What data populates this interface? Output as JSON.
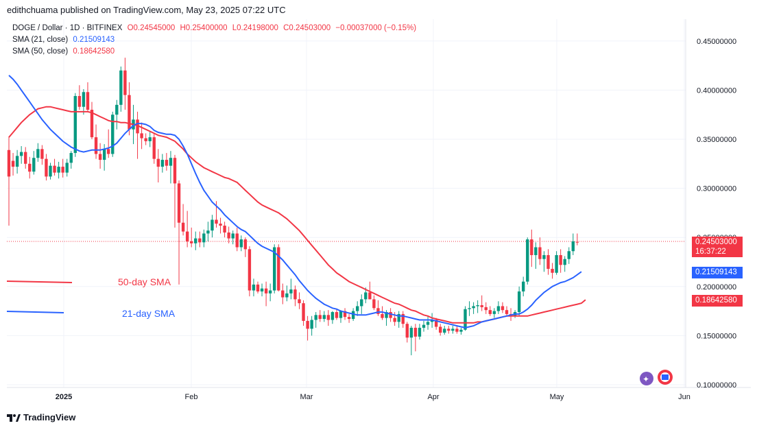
{
  "header": "edithchuama published on TradingView.com, May 23, 2025 07:22 UTC",
  "legend": {
    "symbol": "DOGE / Dollar · 1D · BITFINEX",
    "open": "O0.24545000",
    "high": "H0.25400000",
    "low": "L0.24198000",
    "close": "C0.24503000",
    "change": "−0.00037000 (−0.15%)",
    "sma21_label": "SMA (21, close)",
    "sma21_value": "0.21509143",
    "sma50_label": "SMA (50, close)",
    "sma50_value": "0.18642580"
  },
  "price_tags": {
    "last_price": "0.24503000",
    "countdown": "16:37:22",
    "sma21": "0.21509143",
    "sma50": "0.18642580"
  },
  "annotations": {
    "sma50": "50-day SMA",
    "sma21": "21-day SMA"
  },
  "footer": "TradingView",
  "colors": {
    "up": "#089981",
    "down": "#f23645",
    "sma21": "#2962ff",
    "sma50": "#f23645",
    "grid": "#f0f3fa"
  },
  "chart_data": {
    "type": "candlestick",
    "y_ticks": [
      "0.45000000",
      "0.40000000",
      "0.35000000",
      "0.30000000",
      "0.25000000",
      "0.20000000",
      "0.15000000",
      "0.10000000"
    ],
    "y_tick_values": [
      0.45,
      0.4,
      0.35,
      0.3,
      0.25,
      0.2,
      0.15,
      0.1
    ],
    "x_ticks": [
      "2025",
      "Feb",
      "Mar",
      "Apr",
      "May",
      "Jun"
    ],
    "ylim": [
      0.1,
      0.45
    ],
    "grid": true,
    "candles": [
      {
        "o": 0.339,
        "h": 0.353,
        "l": 0.262,
        "c": 0.312
      },
      {
        "o": 0.328,
        "h": 0.336,
        "l": 0.313,
        "c": 0.322
      },
      {
        "o": 0.322,
        "h": 0.339,
        "l": 0.315,
        "c": 0.333
      },
      {
        "o": 0.333,
        "h": 0.343,
        "l": 0.325,
        "c": 0.337
      },
      {
        "o": 0.337,
        "h": 0.342,
        "l": 0.32,
        "c": 0.325
      },
      {
        "o": 0.325,
        "h": 0.332,
        "l": 0.31,
        "c": 0.317
      },
      {
        "o": 0.317,
        "h": 0.338,
        "l": 0.314,
        "c": 0.331
      },
      {
        "o": 0.331,
        "h": 0.346,
        "l": 0.327,
        "c": 0.34
      },
      {
        "o": 0.34,
        "h": 0.344,
        "l": 0.324,
        "c": 0.33
      },
      {
        "o": 0.33,
        "h": 0.335,
        "l": 0.308,
        "c": 0.312
      },
      {
        "o": 0.312,
        "h": 0.326,
        "l": 0.309,
        "c": 0.323
      },
      {
        "o": 0.323,
        "h": 0.33,
        "l": 0.313,
        "c": 0.316
      },
      {
        "o": 0.316,
        "h": 0.327,
        "l": 0.31,
        "c": 0.322
      },
      {
        "o": 0.322,
        "h": 0.33,
        "l": 0.311,
        "c": 0.316
      },
      {
        "o": 0.316,
        "h": 0.33,
        "l": 0.312,
        "c": 0.326
      },
      {
        "o": 0.326,
        "h": 0.338,
        "l": 0.32,
        "c": 0.336
      },
      {
        "o": 0.336,
        "h": 0.397,
        "l": 0.332,
        "c": 0.394
      },
      {
        "o": 0.394,
        "h": 0.405,
        "l": 0.38,
        "c": 0.383
      },
      {
        "o": 0.383,
        "h": 0.401,
        "l": 0.375,
        "c": 0.398
      },
      {
        "o": 0.398,
        "h": 0.408,
        "l": 0.378,
        "c": 0.38
      },
      {
        "o": 0.38,
        "h": 0.388,
        "l": 0.35,
        "c": 0.352
      },
      {
        "o": 0.352,
        "h": 0.365,
        "l": 0.33,
        "c": 0.335
      },
      {
        "o": 0.335,
        "h": 0.346,
        "l": 0.32,
        "c": 0.329
      },
      {
        "o": 0.329,
        "h": 0.345,
        "l": 0.318,
        "c": 0.34
      },
      {
        "o": 0.34,
        "h": 0.36,
        "l": 0.331,
        "c": 0.335
      },
      {
        "o": 0.335,
        "h": 0.378,
        "l": 0.332,
        "c": 0.375
      },
      {
        "o": 0.375,
        "h": 0.39,
        "l": 0.36,
        "c": 0.385
      },
      {
        "o": 0.385,
        "h": 0.424,
        "l": 0.378,
        "c": 0.42
      },
      {
        "o": 0.42,
        "h": 0.433,
        "l": 0.38,
        "c": 0.395
      },
      {
        "o": 0.395,
        "h": 0.408,
        "l": 0.354,
        "c": 0.36
      },
      {
        "o": 0.36,
        "h": 0.385,
        "l": 0.345,
        "c": 0.37
      },
      {
        "o": 0.37,
        "h": 0.378,
        "l": 0.33,
        "c": 0.356
      },
      {
        "o": 0.356,
        "h": 0.367,
        "l": 0.34,
        "c": 0.351
      },
      {
        "o": 0.351,
        "h": 0.356,
        "l": 0.344,
        "c": 0.348
      },
      {
        "o": 0.348,
        "h": 0.358,
        "l": 0.342,
        "c": 0.352
      },
      {
        "o": 0.352,
        "h": 0.356,
        "l": 0.325,
        "c": 0.33
      },
      {
        "o": 0.33,
        "h": 0.34,
        "l": 0.306,
        "c": 0.322
      },
      {
        "o": 0.322,
        "h": 0.335,
        "l": 0.316,
        "c": 0.329
      },
      {
        "o": 0.329,
        "h": 0.336,
        "l": 0.318,
        "c": 0.323
      },
      {
        "o": 0.323,
        "h": 0.338,
        "l": 0.305,
        "c": 0.331
      },
      {
        "o": 0.331,
        "h": 0.334,
        "l": 0.26,
        "c": 0.305
      },
      {
        "o": 0.305,
        "h": 0.308,
        "l": 0.202,
        "c": 0.265
      },
      {
        "o": 0.265,
        "h": 0.284,
        "l": 0.252,
        "c": 0.256
      },
      {
        "o": 0.256,
        "h": 0.277,
        "l": 0.24,
        "c": 0.246
      },
      {
        "o": 0.246,
        "h": 0.26,
        "l": 0.24,
        "c": 0.244
      },
      {
        "o": 0.244,
        "h": 0.256,
        "l": 0.237,
        "c": 0.249
      },
      {
        "o": 0.249,
        "h": 0.256,
        "l": 0.24,
        "c": 0.245
      },
      {
        "o": 0.245,
        "h": 0.258,
        "l": 0.24,
        "c": 0.254
      },
      {
        "o": 0.254,
        "h": 0.266,
        "l": 0.246,
        "c": 0.257
      },
      {
        "o": 0.257,
        "h": 0.273,
        "l": 0.25,
        "c": 0.268
      },
      {
        "o": 0.268,
        "h": 0.287,
        "l": 0.26,
        "c": 0.264
      },
      {
        "o": 0.264,
        "h": 0.27,
        "l": 0.254,
        "c": 0.262
      },
      {
        "o": 0.262,
        "h": 0.266,
        "l": 0.25,
        "c": 0.255
      },
      {
        "o": 0.255,
        "h": 0.261,
        "l": 0.244,
        "c": 0.249
      },
      {
        "o": 0.249,
        "h": 0.257,
        "l": 0.243,
        "c": 0.254
      },
      {
        "o": 0.254,
        "h": 0.26,
        "l": 0.236,
        "c": 0.24
      },
      {
        "o": 0.24,
        "h": 0.252,
        "l": 0.236,
        "c": 0.248
      },
      {
        "o": 0.248,
        "h": 0.25,
        "l": 0.23,
        "c": 0.238
      },
      {
        "o": 0.238,
        "h": 0.241,
        "l": 0.19,
        "c": 0.196
      },
      {
        "o": 0.196,
        "h": 0.208,
        "l": 0.19,
        "c": 0.202
      },
      {
        "o": 0.202,
        "h": 0.205,
        "l": 0.193,
        "c": 0.195
      },
      {
        "o": 0.195,
        "h": 0.203,
        "l": 0.19,
        "c": 0.198
      },
      {
        "o": 0.198,
        "h": 0.205,
        "l": 0.18,
        "c": 0.193
      },
      {
        "o": 0.193,
        "h": 0.203,
        "l": 0.185,
        "c": 0.196
      },
      {
        "o": 0.196,
        "h": 0.243,
        "l": 0.193,
        "c": 0.24
      },
      {
        "o": 0.24,
        "h": 0.243,
        "l": 0.195,
        "c": 0.196
      },
      {
        "o": 0.196,
        "h": 0.203,
        "l": 0.182,
        "c": 0.189
      },
      {
        "o": 0.189,
        "h": 0.201,
        "l": 0.185,
        "c": 0.193
      },
      {
        "o": 0.193,
        "h": 0.208,
        "l": 0.187,
        "c": 0.197
      },
      {
        "o": 0.197,
        "h": 0.201,
        "l": 0.18,
        "c": 0.187
      },
      {
        "o": 0.187,
        "h": 0.194,
        "l": 0.177,
        "c": 0.183
      },
      {
        "o": 0.183,
        "h": 0.186,
        "l": 0.16,
        "c": 0.165
      },
      {
        "o": 0.165,
        "h": 0.17,
        "l": 0.145,
        "c": 0.157
      },
      {
        "o": 0.157,
        "h": 0.17,
        "l": 0.15,
        "c": 0.166
      },
      {
        "o": 0.166,
        "h": 0.174,
        "l": 0.158,
        "c": 0.171
      },
      {
        "o": 0.171,
        "h": 0.176,
        "l": 0.164,
        "c": 0.167
      },
      {
        "o": 0.167,
        "h": 0.175,
        "l": 0.164,
        "c": 0.171
      },
      {
        "o": 0.171,
        "h": 0.176,
        "l": 0.16,
        "c": 0.166
      },
      {
        "o": 0.166,
        "h": 0.175,
        "l": 0.162,
        "c": 0.174
      },
      {
        "o": 0.174,
        "h": 0.177,
        "l": 0.166,
        "c": 0.168
      },
      {
        "o": 0.168,
        "h": 0.176,
        "l": 0.163,
        "c": 0.175
      },
      {
        "o": 0.175,
        "h": 0.178,
        "l": 0.166,
        "c": 0.169
      },
      {
        "o": 0.169,
        "h": 0.172,
        "l": 0.163,
        "c": 0.167
      },
      {
        "o": 0.167,
        "h": 0.178,
        "l": 0.165,
        "c": 0.175
      },
      {
        "o": 0.175,
        "h": 0.185,
        "l": 0.17,
        "c": 0.18
      },
      {
        "o": 0.18,
        "h": 0.192,
        "l": 0.172,
        "c": 0.187
      },
      {
        "o": 0.187,
        "h": 0.199,
        "l": 0.183,
        "c": 0.194
      },
      {
        "o": 0.194,
        "h": 0.205,
        "l": 0.187,
        "c": 0.187
      },
      {
        "o": 0.187,
        "h": 0.191,
        "l": 0.176,
        "c": 0.178
      },
      {
        "o": 0.178,
        "h": 0.186,
        "l": 0.17,
        "c": 0.172
      },
      {
        "o": 0.172,
        "h": 0.18,
        "l": 0.166,
        "c": 0.168
      },
      {
        "o": 0.168,
        "h": 0.176,
        "l": 0.16,
        "c": 0.174
      },
      {
        "o": 0.174,
        "h": 0.178,
        "l": 0.164,
        "c": 0.168
      },
      {
        "o": 0.168,
        "h": 0.174,
        "l": 0.16,
        "c": 0.164
      },
      {
        "o": 0.164,
        "h": 0.175,
        "l": 0.158,
        "c": 0.172
      },
      {
        "o": 0.172,
        "h": 0.175,
        "l": 0.158,
        "c": 0.162
      },
      {
        "o": 0.162,
        "h": 0.164,
        "l": 0.143,
        "c": 0.148
      },
      {
        "o": 0.148,
        "h": 0.16,
        "l": 0.13,
        "c": 0.158
      },
      {
        "o": 0.158,
        "h": 0.162,
        "l": 0.134,
        "c": 0.149
      },
      {
        "o": 0.149,
        "h": 0.162,
        "l": 0.146,
        "c": 0.158
      },
      {
        "o": 0.158,
        "h": 0.165,
        "l": 0.154,
        "c": 0.161
      },
      {
        "o": 0.161,
        "h": 0.17,
        "l": 0.156,
        "c": 0.164
      },
      {
        "o": 0.164,
        "h": 0.173,
        "l": 0.158,
        "c": 0.166
      },
      {
        "o": 0.166,
        "h": 0.168,
        "l": 0.156,
        "c": 0.159
      },
      {
        "o": 0.159,
        "h": 0.162,
        "l": 0.15,
        "c": 0.153
      },
      {
        "o": 0.153,
        "h": 0.16,
        "l": 0.151,
        "c": 0.157
      },
      {
        "o": 0.157,
        "h": 0.16,
        "l": 0.152,
        "c": 0.155
      },
      {
        "o": 0.155,
        "h": 0.16,
        "l": 0.152,
        "c": 0.157
      },
      {
        "o": 0.157,
        "h": 0.16,
        "l": 0.152,
        "c": 0.154
      },
      {
        "o": 0.154,
        "h": 0.158,
        "l": 0.151,
        "c": 0.156
      },
      {
        "o": 0.156,
        "h": 0.18,
        "l": 0.155,
        "c": 0.177
      },
      {
        "o": 0.177,
        "h": 0.185,
        "l": 0.17,
        "c": 0.178
      },
      {
        "o": 0.178,
        "h": 0.184,
        "l": 0.172,
        "c": 0.18
      },
      {
        "o": 0.18,
        "h": 0.186,
        "l": 0.173,
        "c": 0.181
      },
      {
        "o": 0.181,
        "h": 0.191,
        "l": 0.175,
        "c": 0.179
      },
      {
        "o": 0.179,
        "h": 0.184,
        "l": 0.172,
        "c": 0.176
      },
      {
        "o": 0.176,
        "h": 0.18,
        "l": 0.17,
        "c": 0.172
      },
      {
        "o": 0.172,
        "h": 0.178,
        "l": 0.168,
        "c": 0.175
      },
      {
        "o": 0.175,
        "h": 0.185,
        "l": 0.172,
        "c": 0.18
      },
      {
        "o": 0.18,
        "h": 0.184,
        "l": 0.173,
        "c": 0.176
      },
      {
        "o": 0.176,
        "h": 0.18,
        "l": 0.17,
        "c": 0.172
      },
      {
        "o": 0.172,
        "h": 0.178,
        "l": 0.165,
        "c": 0.17
      },
      {
        "o": 0.17,
        "h": 0.176,
        "l": 0.168,
        "c": 0.174
      },
      {
        "o": 0.174,
        "h": 0.2,
        "l": 0.17,
        "c": 0.195
      },
      {
        "o": 0.195,
        "h": 0.21,
        "l": 0.19,
        "c": 0.205
      },
      {
        "o": 0.205,
        "h": 0.25,
        "l": 0.202,
        "c": 0.248
      },
      {
        "o": 0.248,
        "h": 0.258,
        "l": 0.22,
        "c": 0.232
      },
      {
        "o": 0.232,
        "h": 0.245,
        "l": 0.218,
        "c": 0.24
      },
      {
        "o": 0.24,
        "h": 0.25,
        "l": 0.222,
        "c": 0.228
      },
      {
        "o": 0.228,
        "h": 0.236,
        "l": 0.215,
        "c": 0.232
      },
      {
        "o": 0.232,
        "h": 0.238,
        "l": 0.212,
        "c": 0.218
      },
      {
        "o": 0.218,
        "h": 0.224,
        "l": 0.208,
        "c": 0.214
      },
      {
        "o": 0.214,
        "h": 0.236,
        "l": 0.212,
        "c": 0.232
      },
      {
        "o": 0.232,
        "h": 0.238,
        "l": 0.214,
        "c": 0.222
      },
      {
        "o": 0.222,
        "h": 0.231,
        "l": 0.215,
        "c": 0.228
      },
      {
        "o": 0.228,
        "h": 0.24,
        "l": 0.223,
        "c": 0.236
      },
      {
        "o": 0.236,
        "h": 0.254,
        "l": 0.232,
        "c": 0.246
      },
      {
        "o": 0.24545,
        "h": 0.254,
        "l": 0.24198,
        "c": 0.24503
      }
    ],
    "sma21": [
      0.415,
      0.411,
      0.406,
      0.4,
      0.394,
      0.388,
      0.382,
      0.376,
      0.37,
      0.365,
      0.36,
      0.356,
      0.352,
      0.348,
      0.345,
      0.342,
      0.34,
      0.338,
      0.337,
      0.338,
      0.339,
      0.339,
      0.339,
      0.34,
      0.341,
      0.343,
      0.346,
      0.351,
      0.356,
      0.36,
      0.364,
      0.366,
      0.366,
      0.365,
      0.363,
      0.359,
      0.357,
      0.356,
      0.355,
      0.355,
      0.354,
      0.35,
      0.343,
      0.335,
      0.325,
      0.315,
      0.306,
      0.298,
      0.292,
      0.286,
      0.282,
      0.278,
      0.273,
      0.269,
      0.265,
      0.261,
      0.258,
      0.256,
      0.252,
      0.248,
      0.244,
      0.241,
      0.239,
      0.237,
      0.235,
      0.231,
      0.227,
      0.222,
      0.217,
      0.212,
      0.206,
      0.201,
      0.196,
      0.192,
      0.188,
      0.185,
      0.182,
      0.18,
      0.178,
      0.177,
      0.175,
      0.174,
      0.173,
      0.172,
      0.171,
      0.171,
      0.171,
      0.172,
      0.173,
      0.174,
      0.174,
      0.173,
      0.172,
      0.171,
      0.17,
      0.17,
      0.169,
      0.168,
      0.167,
      0.166,
      0.166,
      0.166,
      0.166,
      0.165,
      0.164,
      0.163,
      0.162,
      0.161,
      0.16,
      0.159,
      0.158,
      0.159,
      0.16,
      0.162,
      0.164,
      0.165,
      0.166,
      0.167,
      0.168,
      0.169,
      0.17,
      0.171,
      0.172,
      0.172,
      0.174,
      0.177,
      0.181,
      0.186,
      0.19,
      0.194,
      0.197,
      0.2,
      0.202,
      0.204,
      0.205,
      0.207,
      0.209,
      0.212,
      0.21509
    ],
    "sma50": [
      0.352,
      0.357,
      0.362,
      0.367,
      0.371,
      0.375,
      0.378,
      0.381,
      0.382,
      0.383,
      0.383,
      0.382,
      0.381,
      0.38,
      0.379,
      0.378,
      0.378,
      0.378,
      0.378,
      0.378,
      0.377,
      0.375,
      0.373,
      0.371,
      0.369,
      0.368,
      0.368,
      0.367,
      0.367,
      0.366,
      0.365,
      0.364,
      0.362,
      0.36,
      0.358,
      0.356,
      0.354,
      0.353,
      0.352,
      0.35,
      0.348,
      0.344,
      0.34,
      0.335,
      0.331,
      0.327,
      0.324,
      0.321,
      0.319,
      0.317,
      0.315,
      0.313,
      0.311,
      0.31,
      0.308,
      0.306,
      0.302,
      0.298,
      0.294,
      0.29,
      0.286,
      0.283,
      0.281,
      0.279,
      0.277,
      0.275,
      0.272,
      0.269,
      0.265,
      0.261,
      0.257,
      0.252,
      0.247,
      0.242,
      0.237,
      0.232,
      0.227,
      0.222,
      0.218,
      0.214,
      0.211,
      0.208,
      0.205,
      0.203,
      0.201,
      0.199,
      0.197,
      0.195,
      0.193,
      0.191,
      0.189,
      0.187,
      0.185,
      0.183,
      0.182,
      0.18,
      0.178,
      0.176,
      0.175,
      0.173,
      0.171,
      0.17,
      0.168,
      0.167,
      0.166,
      0.165,
      0.164,
      0.163,
      0.163,
      0.163,
      0.163,
      0.163,
      0.163,
      0.164,
      0.164,
      0.165,
      0.166,
      0.167,
      0.168,
      0.169,
      0.17,
      0.17,
      0.17,
      0.17,
      0.17,
      0.17,
      0.171,
      0.172,
      0.173,
      0.174,
      0.175,
      0.176,
      0.177,
      0.178,
      0.179,
      0.18,
      0.181,
      0.182,
      0.183,
      0.18643
    ]
  }
}
